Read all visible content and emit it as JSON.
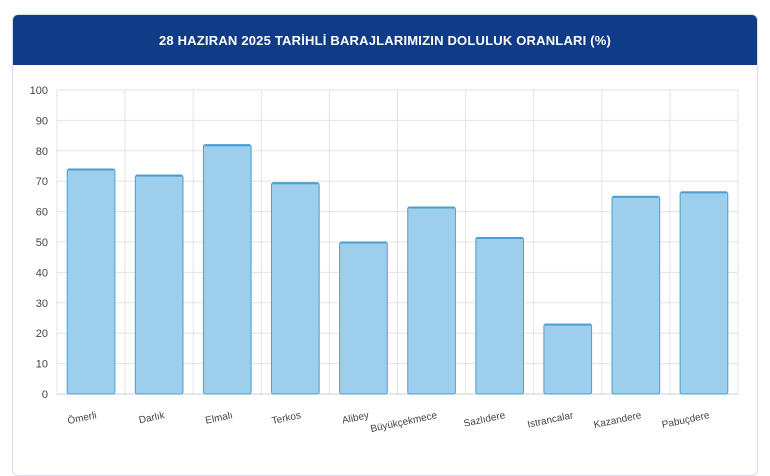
{
  "header": {
    "title": "28 HAZIRAN 2025 TARİHLİ BARAJLARIMIZIN DOLULUK ORANLARI (%)"
  },
  "colors": {
    "header_bg": "#0f3b87",
    "bar_fill": "#9dcfec",
    "bar_stroke": "#4a9fcf",
    "grid": "#e3e3e3"
  },
  "chart_data": {
    "type": "bar",
    "title": "28 HAZIRAN 2025 TARİHLİ BARAJLARIMIZIN DOLULUK ORANLARI (%)",
    "categories": [
      "Ömerli",
      "Darlık",
      "Elmalı",
      "Terkos",
      "Alibey",
      "Büyükçekmece",
      "Sazlıdere",
      "Istrancalar",
      "Kazandere",
      "Pabuçdere"
    ],
    "values": [
      74,
      72,
      82,
      69.5,
      50,
      61.5,
      51.5,
      23,
      65,
      66.5
    ],
    "ylim": [
      0,
      100
    ],
    "yticks": [
      0,
      10,
      20,
      30,
      40,
      50,
      60,
      70,
      80,
      90,
      100
    ],
    "grid": true,
    "legend": "none"
  }
}
